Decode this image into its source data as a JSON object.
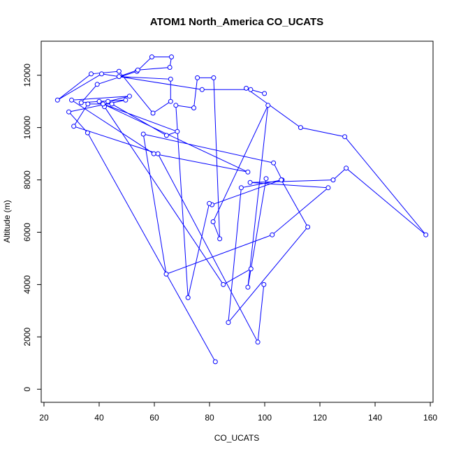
{
  "chart_data": {
    "type": "line",
    "title": "ATOM1 North_America CO_UCATS",
    "xlabel": "CO_UCATS",
    "ylabel": "Altitude (m)",
    "xlim": [
      19,
      161
    ],
    "ylim": [
      -500,
      13300
    ],
    "xticks": [
      20,
      40,
      60,
      80,
      100,
      120,
      140,
      160
    ],
    "yticks": [
      0,
      2000,
      4000,
      6000,
      8000,
      10000,
      12000
    ],
    "grid": false,
    "legend": "none",
    "series_color": "#0000ff",
    "marker": "open-circle",
    "x": [
      82.1,
      35.8,
      29.0,
      49.6,
      40.0,
      33.5,
      39.3,
      53.7,
      59.1,
      66.2,
      65.6,
      54.0,
      47.2,
      65.9,
      65.9,
      59.5,
      47.2,
      37.1,
      24.9,
      40.9,
      77.3,
      94.9,
      99.9,
      93.3,
      113.0,
      129.0,
      158.4,
      129.5,
      124.8,
      94.7,
      123.0,
      102.7,
      64.3,
      56.0,
      103.2,
      106.3,
      91.5,
      86.8,
      115.6,
      106.0,
      80.9,
      79.9,
      72.2,
      67.8,
      74.3,
      75.6,
      81.5,
      83.7,
      81.3,
      101.2,
      93.9,
      100.5,
      95.0,
      85.0,
      41.9,
      43.2,
      51.0,
      30.0,
      59.8,
      93.9,
      41.4,
      68.3,
      64.4,
      44.6,
      35.9,
      30.8,
      61.3,
      97.5,
      99.7
    ],
    "y": [
      1050,
      9800,
      10600,
      11050,
      11000,
      10950,
      11650,
      12150,
      12700,
      12700,
      12300,
      12200,
      11950,
      11850,
      11000,
      10550,
      12150,
      12050,
      11050,
      12050,
      11450,
      11450,
      11300,
      11500,
      10000,
      9650,
      5900,
      8450,
      8000,
      7900,
      7700,
      5900,
      4400,
      9750,
      8650,
      8000,
      7700,
      2550,
      6200,
      8000,
      7050,
      7100,
      3500,
      10850,
      10750,
      11900,
      11900,
      5750,
      6400,
      10850,
      3900,
      8050,
      4600,
      4000,
      10800,
      11000,
      11200,
      11050,
      9000,
      8300,
      10900,
      9850,
      9700,
      10900,
      10900,
      10050,
      9000,
      1800,
      4000
    ]
  }
}
